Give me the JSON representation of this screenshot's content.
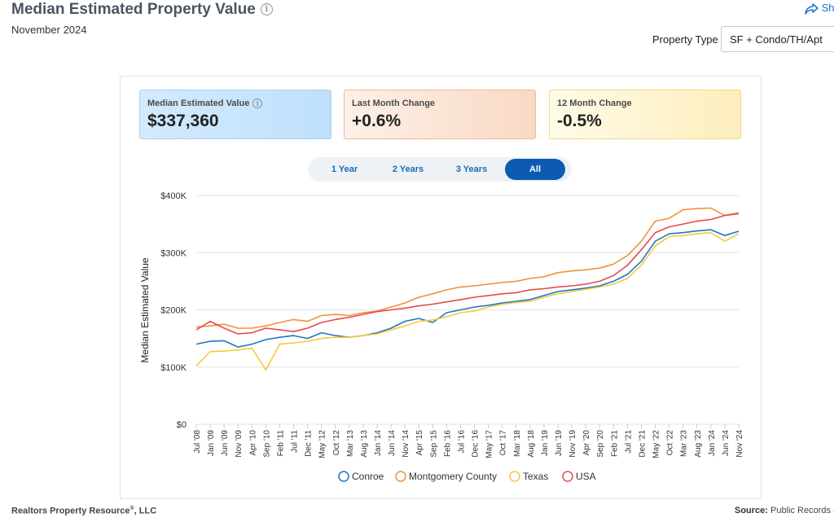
{
  "header": {
    "title": "Median Estimated Property Value",
    "date": "November 2024",
    "share_label": "Share",
    "property_type_label": "Property Type",
    "property_type_value": "SF + Condo/TH/Apt"
  },
  "cards": [
    {
      "label": "Median Estimated Value",
      "value": "$337,360"
    },
    {
      "label": "Last Month Change",
      "value": "+0.6%"
    },
    {
      "label": "12 Month Change",
      "value": "-0.5%"
    }
  ],
  "tabs": [
    "1 Year",
    "2 Years",
    "3 Years",
    "All"
  ],
  "active_tab": "All",
  "colors": {
    "conroe": "#1f77c4",
    "montgomery": "#f0923c",
    "texas": "#f7c93b",
    "usa": "#e8494c"
  },
  "footer": {
    "left_name": "Realtors Property Resource",
    "left_mark": "®",
    "left_suffix": ", LLC",
    "right_label": "Source:",
    "right_text": "Public Records and"
  },
  "chart_data": {
    "type": "line",
    "title": "Median Estimated Property Value",
    "ylabel": "Median Estimated Value",
    "xlabel": "",
    "ylim": [
      0,
      400000
    ],
    "yticks": [
      0,
      100000,
      200000,
      300000,
      400000
    ],
    "ytick_labels": [
      "$0",
      "$100K",
      "$200K",
      "$300K",
      "$400K"
    ],
    "x_start": "Jul '08",
    "x_end": "Nov '24",
    "tick_labels": [
      "Jul '08",
      "Jan '09",
      "Jun '09",
      "Nov '09",
      "Apr '10",
      "Sep '10",
      "Feb '11",
      "Jul '11",
      "Dec '11",
      "May '12",
      "Oct '12",
      "Mar '13",
      "Aug '13",
      "Jan '14",
      "Jun '14",
      "Nov '14",
      "Apr '15",
      "Sep '15",
      "Feb '16",
      "Jul '16",
      "Dec '16",
      "May '17",
      "Oct '17",
      "Mar '18",
      "Aug '18",
      "Jan '19",
      "Jun '19",
      "Nov '19",
      "Apr '20",
      "Sep '20",
      "Feb '21",
      "Jul '21",
      "Dec '21",
      "May '22",
      "Oct '22",
      "Mar '23",
      "Aug '23",
      "Jan '24",
      "Jun '24",
      "Nov '24"
    ],
    "legend": [
      "Conroe",
      "Montgomery County",
      "Texas",
      "USA"
    ],
    "series": [
      {
        "name": "Conroe",
        "color": "#1f77c4",
        "points": [
          [
            "Jul '08",
            140000
          ],
          [
            "Jan '09",
            145000
          ],
          [
            "Jun '09",
            146000
          ],
          [
            "Nov '09",
            135000
          ],
          [
            "Apr '10",
            140000
          ],
          [
            "Sep '10",
            148000
          ],
          [
            "Feb '11",
            152000
          ],
          [
            "Jul '11",
            155000
          ],
          [
            "Dec '11",
            150000
          ],
          [
            "May '12",
            160000
          ],
          [
            "Oct '12",
            155000
          ],
          [
            "Mar '13",
            152000
          ],
          [
            "Aug '13",
            155000
          ],
          [
            "Jan '14",
            160000
          ],
          [
            "Jun '14",
            168000
          ],
          [
            "Nov '14",
            180000
          ],
          [
            "Apr '15",
            185000
          ],
          [
            "Sep '15",
            178000
          ],
          [
            "Feb '16",
            195000
          ],
          [
            "Jul '16",
            200000
          ],
          [
            "Dec '16",
            205000
          ],
          [
            "May '17",
            208000
          ],
          [
            "Oct '17",
            212000
          ],
          [
            "Mar '18",
            215000
          ],
          [
            "Aug '18",
            218000
          ],
          [
            "Jan '19",
            225000
          ],
          [
            "Jun '19",
            232000
          ],
          [
            "Nov '19",
            235000
          ],
          [
            "Apr '20",
            238000
          ],
          [
            "Sep '20",
            242000
          ],
          [
            "Feb '21",
            250000
          ],
          [
            "Jul '21",
            262000
          ],
          [
            "Dec '21",
            285000
          ],
          [
            "May '22",
            320000
          ],
          [
            "Oct '22",
            333000
          ],
          [
            "Mar '23",
            335000
          ],
          [
            "Aug '23",
            338000
          ],
          [
            "Jan '24",
            340000
          ],
          [
            "Jun '24",
            330000
          ],
          [
            "Nov '24",
            337360
          ]
        ]
      },
      {
        "name": "Montgomery County",
        "color": "#f0923c",
        "points": [
          [
            "Jul '08",
            170000
          ],
          [
            "Jan '09",
            172000
          ],
          [
            "Jun '09",
            175000
          ],
          [
            "Nov '09",
            168000
          ],
          [
            "Apr '10",
            168000
          ],
          [
            "Sep '10",
            172000
          ],
          [
            "Feb '11",
            178000
          ],
          [
            "Jul '11",
            183000
          ],
          [
            "Dec '11",
            180000
          ],
          [
            "May '12",
            190000
          ],
          [
            "Oct '12",
            192000
          ],
          [
            "Mar '13",
            190000
          ],
          [
            "Aug '13",
            195000
          ],
          [
            "Jan '14",
            198000
          ],
          [
            "Jun '14",
            205000
          ],
          [
            "Nov '14",
            212000
          ],
          [
            "Apr '15",
            222000
          ],
          [
            "Sep '15",
            228000
          ],
          [
            "Feb '16",
            235000
          ],
          [
            "Jul '16",
            240000
          ],
          [
            "Dec '16",
            242000
          ],
          [
            "May '17",
            245000
          ],
          [
            "Oct '17",
            248000
          ],
          [
            "Mar '18",
            250000
          ],
          [
            "Aug '18",
            255000
          ],
          [
            "Jan '19",
            258000
          ],
          [
            "Jun '19",
            265000
          ],
          [
            "Nov '19",
            268000
          ],
          [
            "Apr '20",
            270000
          ],
          [
            "Sep '20",
            273000
          ],
          [
            "Feb '21",
            280000
          ],
          [
            "Jul '21",
            295000
          ],
          [
            "Dec '21",
            320000
          ],
          [
            "May '22",
            355000
          ],
          [
            "Oct '22",
            360000
          ],
          [
            "Mar '23",
            375000
          ],
          [
            "Aug '23",
            377000
          ],
          [
            "Jan '24",
            378000
          ],
          [
            "Jun '24",
            365000
          ],
          [
            "Nov '24",
            370000
          ]
        ]
      },
      {
        "name": "Texas",
        "color": "#f7c93b",
        "points": [
          [
            "Jul '08",
            102000
          ],
          [
            "Jan '09",
            127000
          ],
          [
            "Jun '09",
            128000
          ],
          [
            "Nov '09",
            130000
          ],
          [
            "Apr '10",
            133000
          ],
          [
            "Sep '10",
            95000
          ],
          [
            "Feb '11",
            140000
          ],
          [
            "Jul '11",
            142000
          ],
          [
            "Dec '11",
            145000
          ],
          [
            "May '12",
            150000
          ],
          [
            "Oct '12",
            152000
          ],
          [
            "Mar '13",
            152000
          ],
          [
            "Aug '13",
            155000
          ],
          [
            "Jan '14",
            158000
          ],
          [
            "Jun '14",
            165000
          ],
          [
            "Nov '14",
            172000
          ],
          [
            "Apr '15",
            180000
          ],
          [
            "Sep '15",
            182000
          ],
          [
            "Feb '16",
            188000
          ],
          [
            "Jul '16",
            195000
          ],
          [
            "Dec '16",
            198000
          ],
          [
            "May '17",
            205000
          ],
          [
            "Oct '17",
            210000
          ],
          [
            "Mar '18",
            213000
          ],
          [
            "Aug '18",
            215000
          ],
          [
            "Jan '19",
            222000
          ],
          [
            "Jun '19",
            228000
          ],
          [
            "Nov '19",
            232000
          ],
          [
            "Apr '20",
            236000
          ],
          [
            "Sep '20",
            240000
          ],
          [
            "Feb '21",
            245000
          ],
          [
            "Jul '21",
            255000
          ],
          [
            "Dec '21",
            278000
          ],
          [
            "May '22",
            312000
          ],
          [
            "Oct '22",
            328000
          ],
          [
            "Mar '23",
            330000
          ],
          [
            "Aug '23",
            333000
          ],
          [
            "Jan '24",
            335000
          ],
          [
            "Jun '24",
            320000
          ],
          [
            "Nov '24",
            333000
          ]
        ]
      },
      {
        "name": "USA",
        "color": "#e8494c",
        "points": [
          [
            "Jul '08",
            165000
          ],
          [
            "Jan '09",
            180000
          ],
          [
            "Jun '09",
            168000
          ],
          [
            "Nov '09",
            158000
          ],
          [
            "Apr '10",
            160000
          ],
          [
            "Sep '10",
            168000
          ],
          [
            "Feb '11",
            165000
          ],
          [
            "Jul '11",
            162000
          ],
          [
            "Dec '11",
            168000
          ],
          [
            "May '12",
            178000
          ],
          [
            "Oct '12",
            183000
          ],
          [
            "Mar '13",
            187000
          ],
          [
            "Aug '13",
            192000
          ],
          [
            "Jan '14",
            197000
          ],
          [
            "Jun '14",
            200000
          ],
          [
            "Nov '14",
            203000
          ],
          [
            "Apr '15",
            207000
          ],
          [
            "Sep '15",
            210000
          ],
          [
            "Feb '16",
            214000
          ],
          [
            "Jul '16",
            218000
          ],
          [
            "Dec '16",
            222000
          ],
          [
            "May '17",
            225000
          ],
          [
            "Oct '17",
            228000
          ],
          [
            "Mar '18",
            230000
          ],
          [
            "Aug '18",
            235000
          ],
          [
            "Jan '19",
            237000
          ],
          [
            "Jun '19",
            240000
          ],
          [
            "Nov '19",
            242000
          ],
          [
            "Apr '20",
            245000
          ],
          [
            "Sep '20",
            250000
          ],
          [
            "Feb '21",
            260000
          ],
          [
            "Jul '21",
            278000
          ],
          [
            "Dec '21",
            305000
          ],
          [
            "May '22",
            335000
          ],
          [
            "Oct '22",
            345000
          ],
          [
            "Mar '23",
            350000
          ],
          [
            "Aug '23",
            355000
          ],
          [
            "Jan '24",
            358000
          ],
          [
            "Jun '24",
            365000
          ],
          [
            "Nov '24",
            368000
          ]
        ]
      }
    ]
  }
}
